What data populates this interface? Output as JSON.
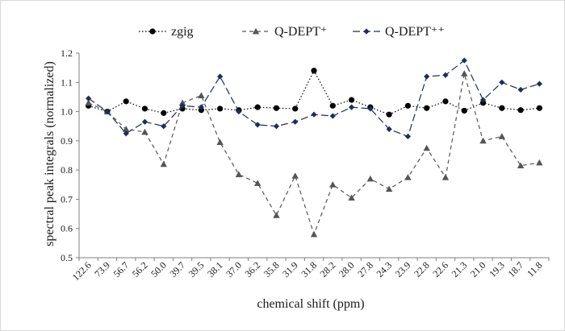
{
  "chart_data": {
    "type": "line",
    "title": "",
    "xlabel": "chemical shift (ppm)",
    "ylabel": "spectral peak integrals (normalized)",
    "ylim": [
      0.5,
      1.2
    ],
    "yticks": [
      "0.5",
      "0.6",
      "0.7",
      "0.8",
      "0.9",
      "1.0",
      "1.1",
      "1.2"
    ],
    "grid": false,
    "legend_position": "top",
    "categories": [
      "122.6",
      "73.9",
      "56.7",
      "56.2",
      "50.0",
      "39.7",
      "39.5",
      "38.1",
      "37.0",
      "36.2",
      "35.8",
      "31.9",
      "31.8",
      "28.2",
      "28.0",
      "27.8",
      "24.3",
      "23.9",
      "22.8",
      "22.6",
      "21.3",
      "21.0",
      "19.3",
      "18.7",
      "11.8"
    ],
    "series": [
      {
        "name": "zgig",
        "marker": "circle",
        "line": "dotted",
        "color": "#000000",
        "values": [
          1.02,
          1.0,
          1.035,
          1.01,
          0.995,
          1.01,
          1.005,
          1.01,
          1.005,
          1.015,
          1.012,
          1.01,
          1.14,
          1.02,
          1.04,
          1.015,
          0.99,
          1.02,
          1.012,
          1.035,
          1.003,
          1.03,
          1.012,
          1.005,
          1.012
        ]
      },
      {
        "name": "Q-DEPT⁺",
        "marker": "triangle",
        "line": "dashed",
        "color": "#555555",
        "values": [
          1.03,
          1.0,
          0.94,
          0.93,
          0.82,
          1.03,
          1.055,
          0.895,
          0.785,
          0.755,
          0.645,
          0.78,
          0.58,
          0.75,
          0.705,
          0.77,
          0.735,
          0.775,
          0.875,
          0.775,
          1.13,
          0.9,
          0.915,
          0.815,
          0.825
        ]
      },
      {
        "name": "Q-DEPT⁺⁺",
        "marker": "diamond",
        "line": "longdash",
        "color": "#1f2d5a",
        "values": [
          1.045,
          1.0,
          0.925,
          0.965,
          0.95,
          1.02,
          1.015,
          1.12,
          1.0,
          0.955,
          0.95,
          0.965,
          0.99,
          0.985,
          1.015,
          1.01,
          0.94,
          0.915,
          1.12,
          1.125,
          1.175,
          1.04,
          1.1,
          1.075,
          1.095
        ]
      }
    ]
  }
}
